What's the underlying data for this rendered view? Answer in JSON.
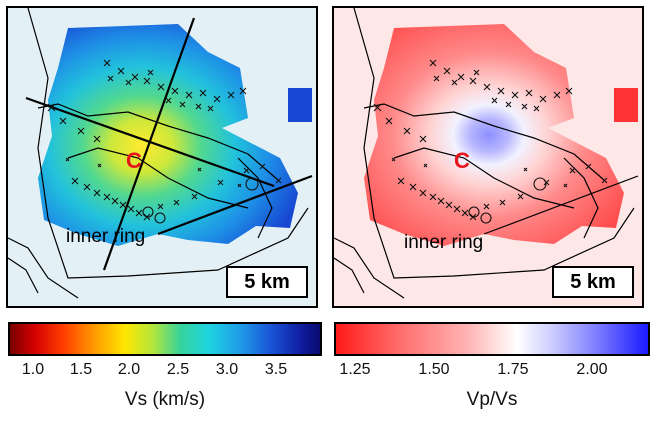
{
  "panels": {
    "vs": {
      "scale_label": "5 km",
      "ring_label": "inner ring",
      "center_label": "C"
    },
    "vpvs": {
      "scale_label": "5 km",
      "ring_label": "inner ring",
      "center_label": "C"
    }
  },
  "colorbars": {
    "vs": {
      "title": "Vs (km/s)",
      "ticks": [
        "1.0",
        "1.5",
        "2.0",
        "2.5",
        "3.0",
        "3.5"
      ],
      "range": [
        0.8,
        3.95
      ]
    },
    "vpvs": {
      "title": "Vp/Vs",
      "ticks": [
        "1.25",
        "1.50",
        "1.75",
        "2.00"
      ],
      "range": [
        1.2,
        2.2
      ]
    }
  },
  "colors": {
    "center_label": "#e8131b",
    "frame": "#000000"
  }
}
